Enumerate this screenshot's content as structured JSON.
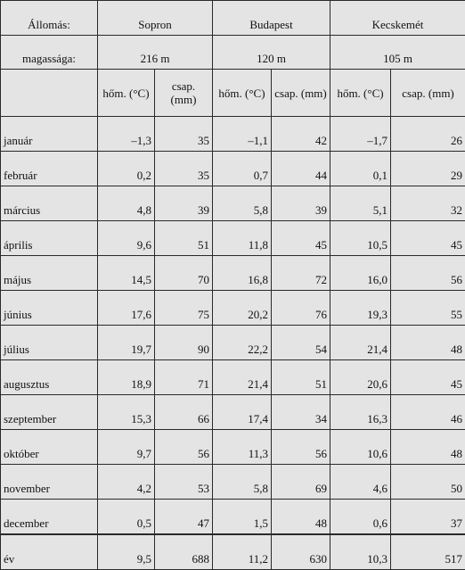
{
  "header": {
    "station_label": "Állomás:",
    "altitude_label": "magassága:",
    "stations": [
      {
        "name": "Sopron",
        "altitude": "216 m"
      },
      {
        "name": "Budapest",
        "altitude": "120 m"
      },
      {
        "name": "Kecskemét",
        "altitude": "105 m"
      }
    ],
    "col_temp": "hőm. (°C)",
    "col_precip": "csap. (mm)"
  },
  "rows": [
    {
      "month": "január",
      "values": [
        "–1,3",
        "35",
        "–1,1",
        "42",
        "–1,7",
        "26"
      ]
    },
    {
      "month": "február",
      "values": [
        "0,2",
        "35",
        "0,7",
        "44",
        "0,1",
        "29"
      ]
    },
    {
      "month": "március",
      "values": [
        "4,8",
        "39",
        "5,8",
        "39",
        "5,1",
        "32"
      ]
    },
    {
      "month": "április",
      "values": [
        "9,6",
        "51",
        "11,8",
        "45",
        "10,5",
        "45"
      ]
    },
    {
      "month": "május",
      "values": [
        "14,5",
        "70",
        "16,8",
        "72",
        "16,0",
        "56"
      ]
    },
    {
      "month": "június",
      "values": [
        "17,6",
        "75",
        "20,2",
        "76",
        "19,3",
        "55"
      ]
    },
    {
      "month": "július",
      "values": [
        "19,7",
        "90",
        "22,2",
        "54",
        "21,4",
        "48"
      ]
    },
    {
      "month": "augusztus",
      "values": [
        "18,9",
        "71",
        "21,4",
        "51",
        "20,6",
        "45"
      ]
    },
    {
      "month": "szeptember",
      "values": [
        "15,3",
        "66",
        "17,4",
        "34",
        "16,3",
        "46"
      ]
    },
    {
      "month": "október",
      "values": [
        "9,7",
        "56",
        "11,3",
        "56",
        "10,6",
        "48"
      ]
    },
    {
      "month": "november",
      "values": [
        "4,2",
        "53",
        "5,8",
        "69",
        "4,6",
        "50"
      ]
    },
    {
      "month": "december",
      "values": [
        "0,5",
        "47",
        "1,5",
        "48",
        "0,6",
        "37"
      ]
    }
  ],
  "total": {
    "month": "év",
    "values": [
      "9,5",
      "688",
      "11,2",
      "630",
      "10,3",
      "517"
    ]
  }
}
